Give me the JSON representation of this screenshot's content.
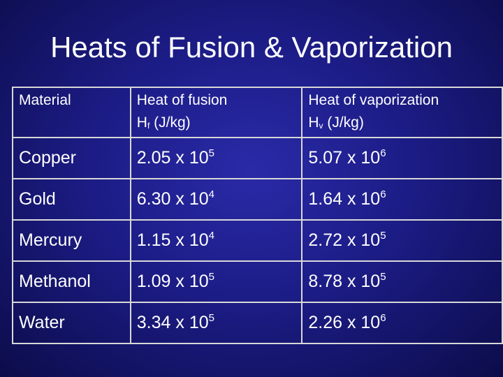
{
  "slide": {
    "title": "Heats of Fusion & Vaporization"
  },
  "table": {
    "headers": {
      "material": "Material",
      "fusion_line1": "Heat of fusion",
      "fusion_symbol": "H",
      "fusion_sub": "f",
      "fusion_unit": "(J/kg)",
      "vapor_line1": "Heat of vaporization",
      "vapor_symbol": "H",
      "vapor_sub": "v",
      "vapor_unit": "(J/kg)"
    },
    "rows": [
      {
        "material": "Copper",
        "fusion_mant": "2.05 x 10",
        "fusion_exp": "5",
        "vapor_mant": "5.07 x 10",
        "vapor_exp": "6"
      },
      {
        "material": "Gold",
        "fusion_mant": "6.30 x 10",
        "fusion_exp": "4",
        "vapor_mant": "1.64 x 10",
        "vapor_exp": "6"
      },
      {
        "material": "Mercury",
        "fusion_mant": "1.15 x 10",
        "fusion_exp": "4",
        "vapor_mant": "2.72 x 10",
        "vapor_exp": "5"
      },
      {
        "material": "Methanol",
        "fusion_mant": "1.09 x 10",
        "fusion_exp": "5",
        "vapor_mant": "8.78 x 10",
        "vapor_exp": "5"
      },
      {
        "material": "Water",
        "fusion_mant": "3.34 x 10",
        "fusion_exp": "5",
        "vapor_mant": "2.26 x 10",
        "vapor_exp": "6"
      }
    ]
  }
}
